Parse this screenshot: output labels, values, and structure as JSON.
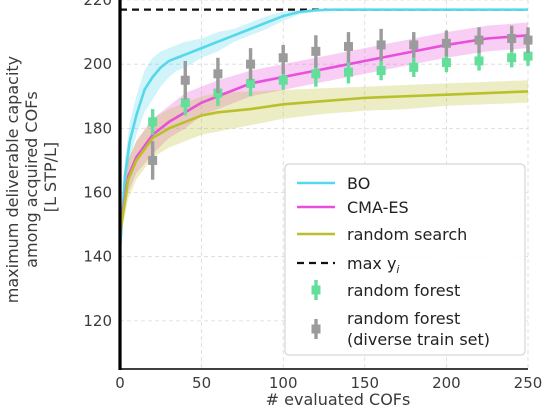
{
  "chart_data": {
    "type": "line",
    "xlabel": "# evaluated COFs",
    "ylabel_lines": [
      "maximum deliverable capacity",
      "among acquired COFs",
      "[L STP/L]"
    ],
    "xlim": [
      0,
      250
    ],
    "ylim": [
      105,
      220
    ],
    "xticks": [
      0,
      50,
      100,
      150,
      200,
      250
    ],
    "yticks": [
      120,
      140,
      160,
      180,
      200,
      220
    ],
    "grid": true,
    "legend_position": "lower-right",
    "reference_line": {
      "name": "max y",
      "name_sub": "i",
      "y": 217,
      "color": "#111111",
      "style": "dashed"
    },
    "series": [
      {
        "name": "BO",
        "color": "#56d7ea",
        "x": [
          0,
          3,
          6,
          10,
          15,
          20,
          25,
          30,
          35,
          40,
          50,
          60,
          70,
          80,
          90,
          100,
          110,
          120,
          130,
          140,
          150,
          175,
          200,
          225,
          250
        ],
        "y": [
          142,
          165,
          176,
          184,
          192,
          196,
          199,
          201,
          202,
          203,
          205,
          207,
          209,
          211,
          213,
          215,
          216.3,
          216.8,
          217,
          217,
          217,
          217,
          217,
          217,
          217
        ],
        "lower": [
          140,
          160,
          170,
          178,
          185,
          189,
          193,
          196,
          198,
          199,
          202,
          204,
          207,
          209,
          211,
          213.5,
          215.5,
          216.4,
          216.8,
          216.9,
          217,
          217,
          217,
          217,
          217
        ],
        "upper": [
          144,
          170,
          182,
          190,
          198,
          202,
          204,
          205,
          206,
          207,
          208,
          210,
          211,
          213,
          215,
          216.4,
          216.9,
          217,
          217,
          217,
          217,
          217,
          217,
          217,
          217
        ]
      },
      {
        "name": "CMA-ES",
        "color": "#ea4fdc",
        "x": [
          0,
          5,
          10,
          20,
          30,
          40,
          50,
          60,
          80,
          100,
          120,
          140,
          160,
          180,
          200,
          225,
          250
        ],
        "y": [
          148,
          165,
          171,
          178,
          182,
          185,
          188,
          190,
          194,
          196,
          198,
          200,
          202,
          204,
          206,
          208,
          209
        ],
        "lower": [
          146,
          160,
          166,
          172,
          177,
          180,
          184,
          186,
          190,
          192,
          194,
          196,
          198,
          200,
          202,
          204,
          205
        ],
        "upper": [
          150,
          170,
          176,
          183,
          187,
          191,
          193,
          195,
          198,
          200,
          202,
          204,
          206,
          208,
          210,
          212,
          213
        ]
      },
      {
        "name": "random search",
        "color": "#b9c02c",
        "x": [
          0,
          5,
          10,
          20,
          30,
          40,
          50,
          60,
          80,
          100,
          125,
          150,
          175,
          200,
          225,
          250
        ],
        "y": [
          147,
          164,
          170,
          177,
          180,
          182,
          184,
          185,
          186,
          187.5,
          188.5,
          189.5,
          190,
          190.5,
          191,
          191.5
        ],
        "lower": [
          145,
          158,
          164,
          171,
          174,
          176,
          178,
          179,
          181,
          183,
          184.5,
          185.5,
          186,
          187,
          187.5,
          188
        ],
        "upper": [
          149,
          170,
          176,
          183,
          186,
          188,
          190,
          191,
          191.5,
          192,
          192.5,
          193,
          193.5,
          194,
          194.5,
          195
        ]
      }
    ],
    "marker_series": [
      {
        "name": "random forest",
        "color": "#63de9b",
        "x": [
          20,
          40,
          60,
          80,
          100,
          120,
          140,
          160,
          180,
          200,
          220,
          240,
          250
        ],
        "y": [
          182,
          188,
          191,
          194,
          195,
          197,
          197.5,
          198,
          199,
          200.5,
          201,
          202,
          202.5
        ],
        "err_low": [
          178,
          184,
          187,
          190,
          192,
          193,
          194,
          195,
          196,
          197.5,
          198,
          199,
          199.5
        ],
        "err_high": [
          186,
          192,
          195,
          198,
          199,
          201,
          201,
          201,
          202,
          203.5,
          204,
          205,
          205.5
        ]
      },
      {
        "name_lines": [
          "random forest",
          "(diverse train set)"
        ],
        "color": "#9b9b9b",
        "x": [
          20,
          40,
          60,
          80,
          100,
          120,
          140,
          160,
          180,
          200,
          220,
          240,
          250
        ],
        "y": [
          170,
          195,
          197,
          200,
          202,
          204,
          205.5,
          206,
          206,
          206.5,
          207.5,
          208,
          207.5
        ],
        "err_low": [
          164,
          189,
          191,
          195,
          197,
          199,
          200.5,
          201,
          202,
          202.5,
          203.5,
          204,
          203.5
        ],
        "err_high": [
          176,
          201,
          202,
          205,
          206,
          209,
          210,
          211,
          210,
          210.5,
          211.5,
          212,
          211.5
        ]
      }
    ]
  }
}
